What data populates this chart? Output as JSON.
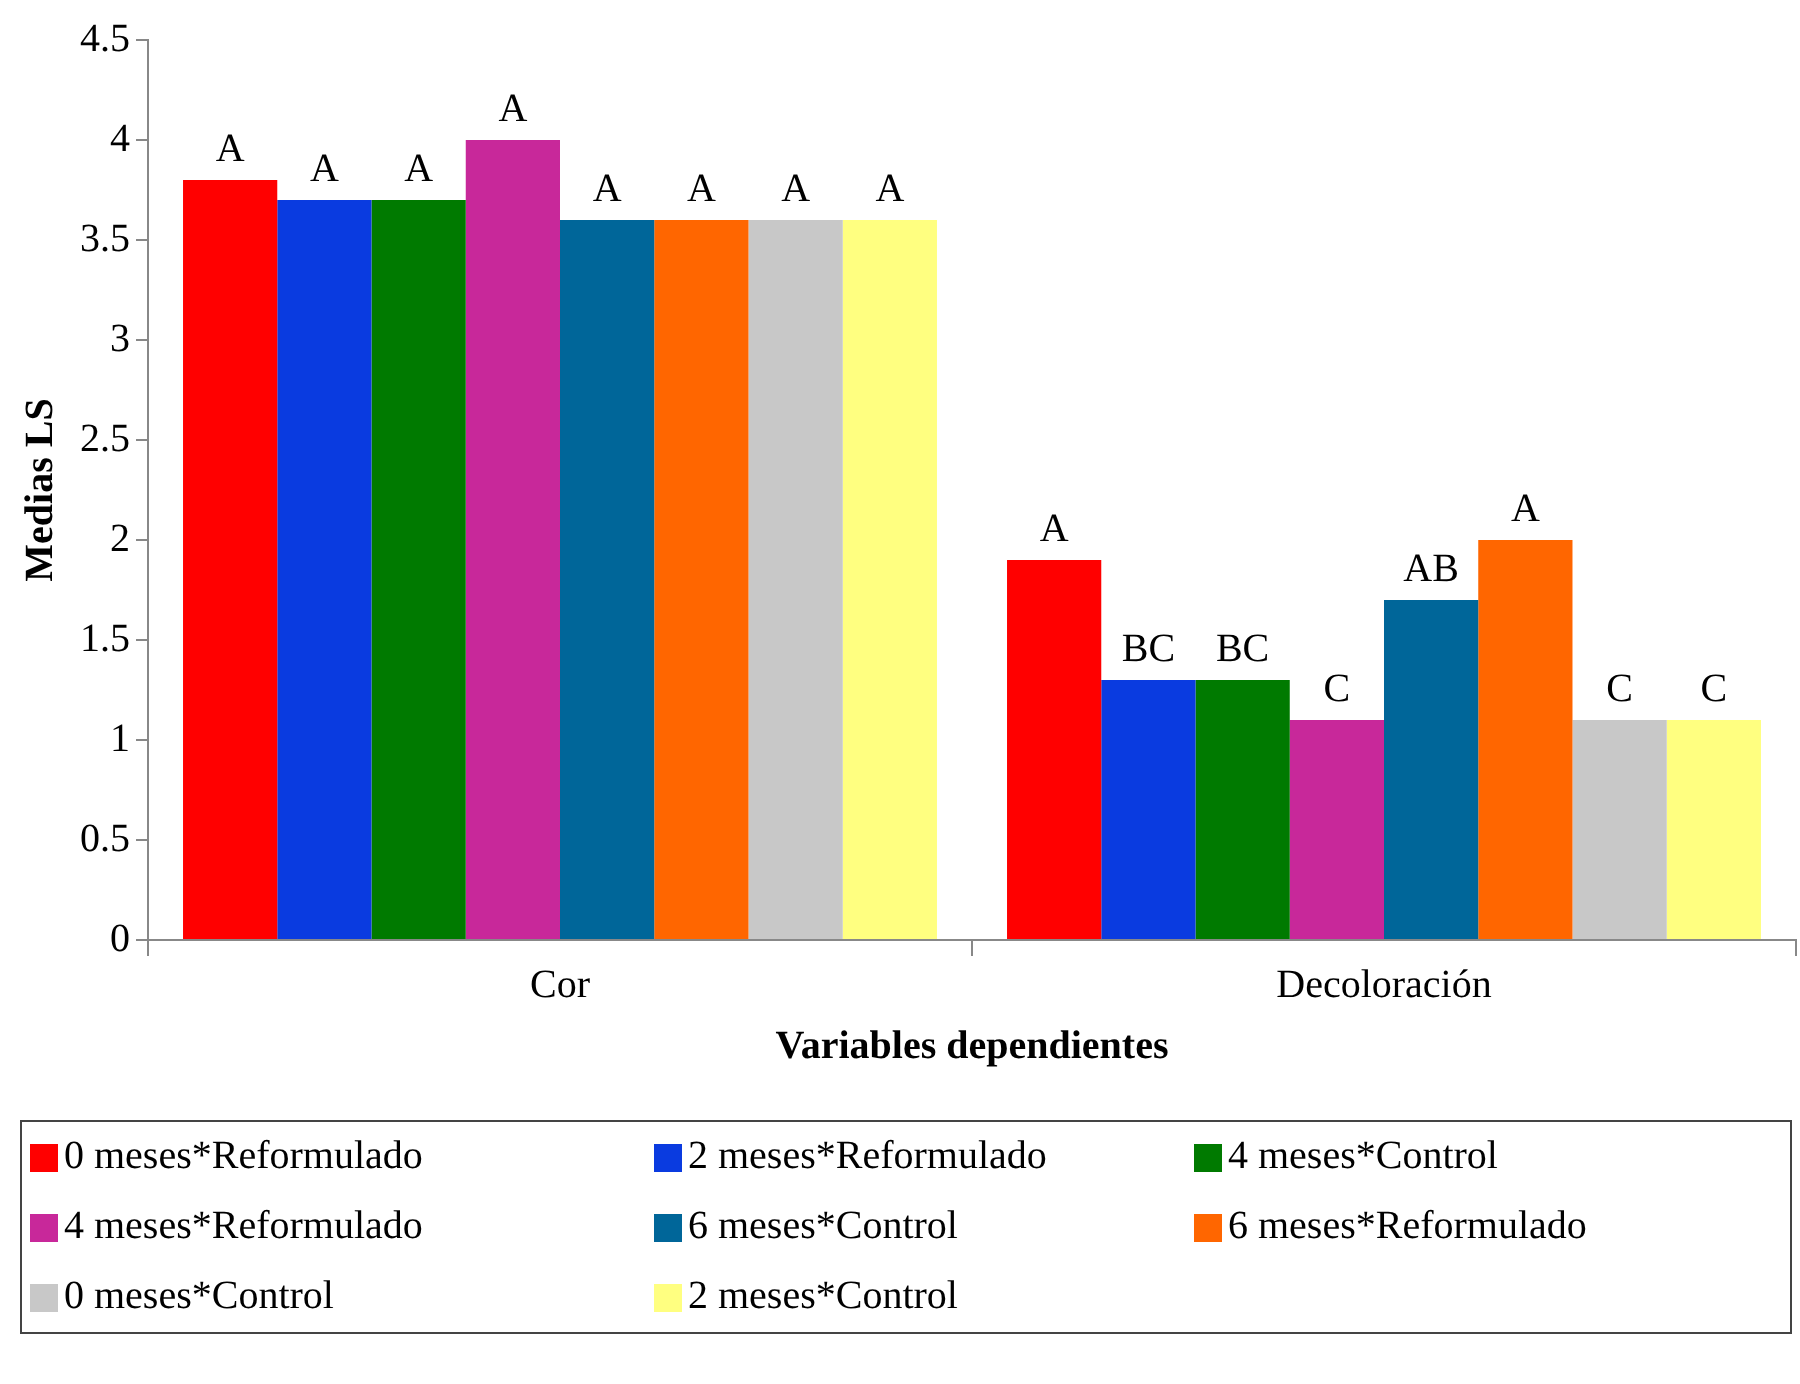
{
  "chart_data": {
    "type": "bar",
    "xlabel": "Variables dependientes",
    "ylabel": "Medias LS",
    "categories": [
      "Cor",
      "Decoloración"
    ],
    "series": [
      {
        "name": "0 meses*Reformulado",
        "color": "#ff0000",
        "values": [
          3.8,
          1.9
        ],
        "value_labels": [
          "A",
          "A"
        ]
      },
      {
        "name": "2 meses*Reformulado",
        "color": "#0a3be0",
        "values": [
          3.7,
          1.3
        ],
        "value_labels": [
          "A",
          "BC"
        ]
      },
      {
        "name": "4 meses*Control",
        "color": "#007a00",
        "values": [
          3.7,
          1.3
        ],
        "value_labels": [
          "A",
          "BC"
        ]
      },
      {
        "name": "4 meses*Reformulado",
        "color": "#c8289a",
        "values": [
          4.0,
          1.1
        ],
        "value_labels": [
          "A",
          "C"
        ]
      },
      {
        "name": "6 meses*Control",
        "color": "#006699",
        "values": [
          3.6,
          1.7
        ],
        "value_labels": [
          "A",
          "AB"
        ]
      },
      {
        "name": "6 meses*Reformulado",
        "color": "#ff6600",
        "values": [
          3.6,
          2.0
        ],
        "value_labels": [
          "A",
          "A"
        ]
      },
      {
        "name": "0 meses*Control",
        "color": "#c8c8c8",
        "values": [
          3.6,
          1.1
        ],
        "value_labels": [
          "A",
          "C"
        ]
      },
      {
        "name": "2 meses*Control",
        "color": "#ffff80",
        "values": [
          3.6,
          1.1
        ],
        "value_labels": [
          "A",
          "C"
        ]
      }
    ],
    "ylim": [
      0,
      4.5
    ],
    "yticks": [
      0,
      0.5,
      1,
      1.5,
      2,
      2.5,
      3,
      3.5,
      4,
      4.5
    ],
    "grid": false,
    "legend": "bottom"
  }
}
